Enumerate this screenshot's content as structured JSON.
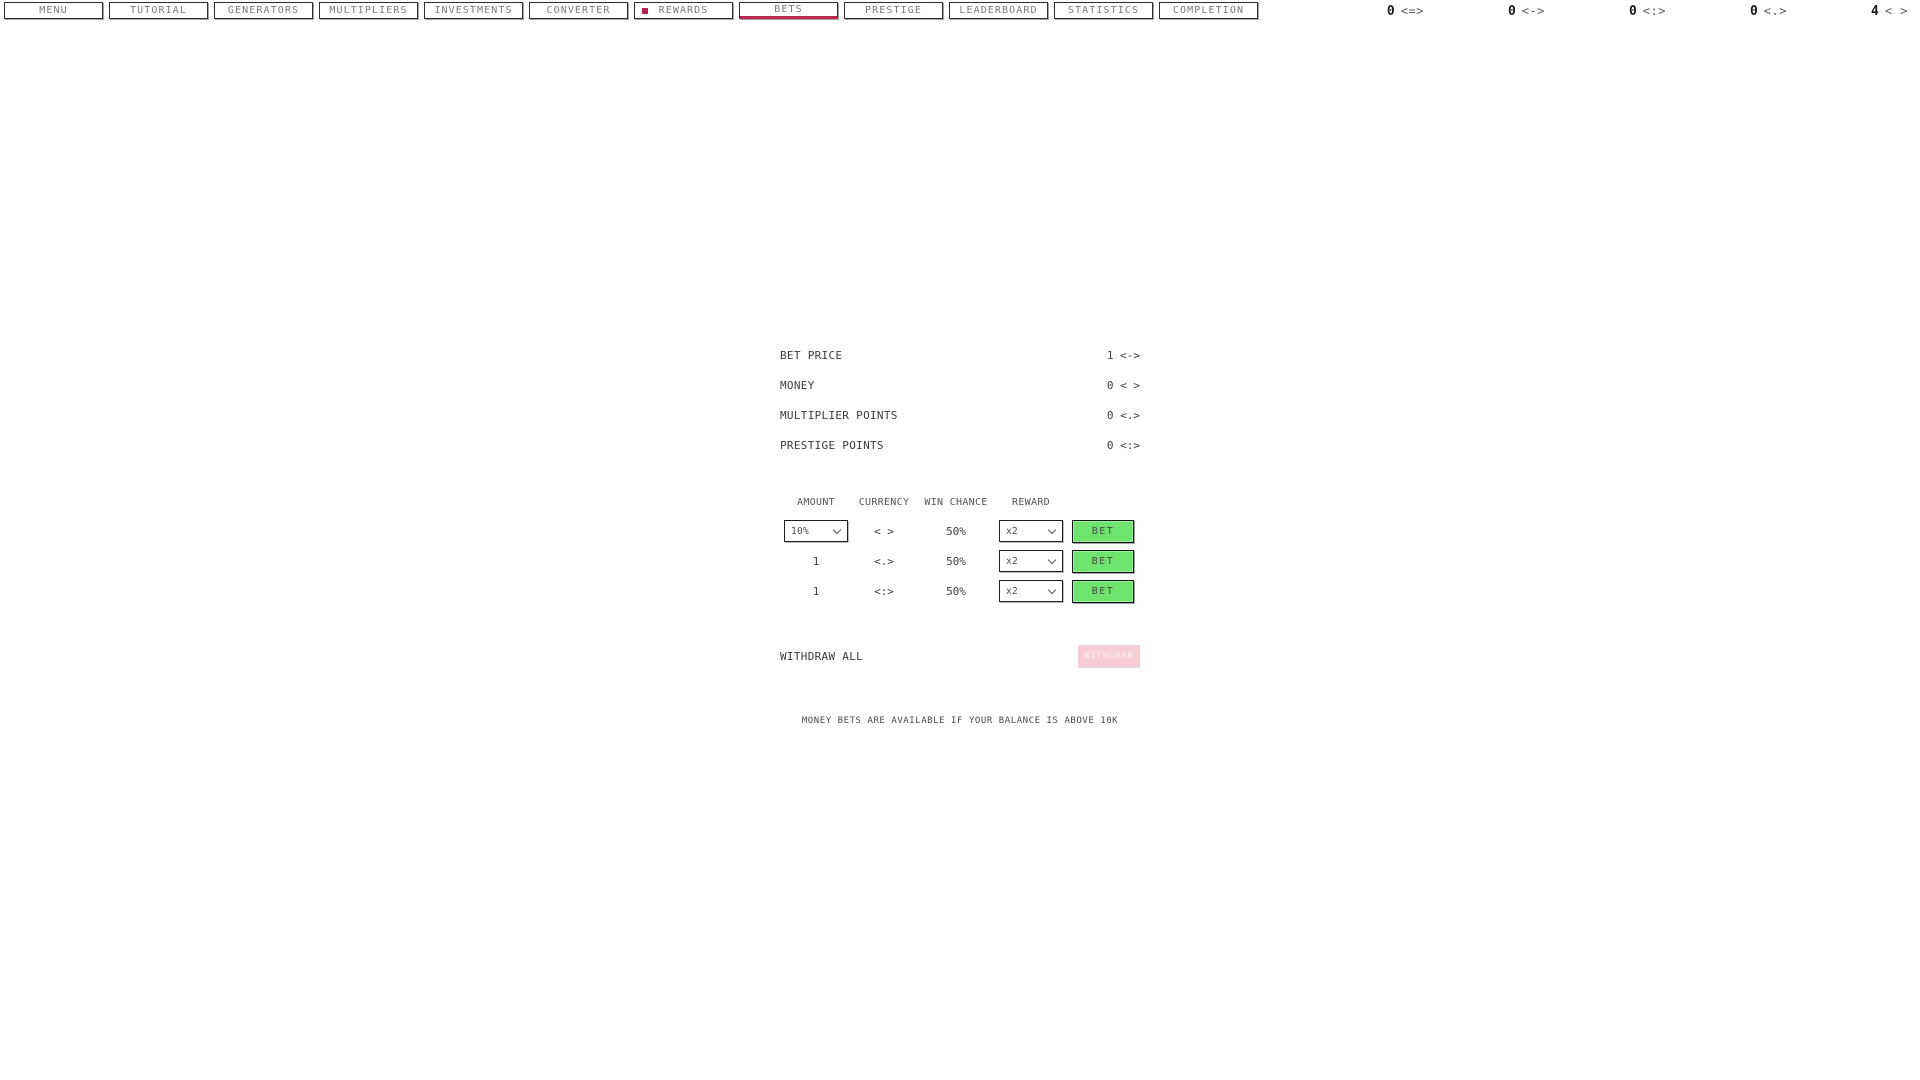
{
  "nav": {
    "items": [
      {
        "label": "MENU",
        "active": false,
        "notification": false
      },
      {
        "label": "TUTORIAL",
        "active": false,
        "notification": false
      },
      {
        "label": "GENERATORS",
        "active": false,
        "notification": false
      },
      {
        "label": "MULTIPLIERS",
        "active": false,
        "notification": false
      },
      {
        "label": "INVESTMENTS",
        "active": false,
        "notification": false
      },
      {
        "label": "CONVERTER",
        "active": false,
        "notification": false
      },
      {
        "label": "REWARDS",
        "active": false,
        "notification": true
      },
      {
        "label": "BETS",
        "active": true,
        "notification": false
      },
      {
        "label": "PRESTIGE",
        "active": false,
        "notification": false
      },
      {
        "label": "LEADERBOARD",
        "active": false,
        "notification": false
      },
      {
        "label": "STATISTICS",
        "active": false,
        "notification": false
      },
      {
        "label": "COMPLETION",
        "active": false,
        "notification": false
      }
    ],
    "counters": [
      {
        "value": "0",
        "symbol": "<=>"
      },
      {
        "value": "0",
        "symbol": "<->"
      },
      {
        "value": "0",
        "symbol": "<:>"
      },
      {
        "value": "0",
        "symbol": "<.>"
      },
      {
        "value": "4",
        "symbol": "< >"
      }
    ]
  },
  "stats": {
    "rows": [
      {
        "label": "BET PRICE",
        "value": "1 <->"
      },
      {
        "label": "MONEY",
        "value": "0 < >"
      },
      {
        "label": "MULTIPLIER POINTS",
        "value": "0 <.>"
      },
      {
        "label": "PRESTIGE POINTS",
        "value": "0 <:>"
      }
    ]
  },
  "bets_table": {
    "headers": {
      "amount": "AMOUNT",
      "currency": "CURRENCY",
      "win_chance": "WIN CHANCE",
      "reward": "REWARD"
    },
    "rows": [
      {
        "amount": "10%",
        "currency": "< >",
        "win_chance": "50%",
        "reward": "x2",
        "bet_label": "BET"
      },
      {
        "amount": "1",
        "currency": "<.>",
        "win_chance": "50%",
        "reward": "x2",
        "bet_label": "BET"
      },
      {
        "amount": "1",
        "currency": "<:>",
        "win_chance": "50%",
        "reward": "x2",
        "bet_label": "BET"
      }
    ]
  },
  "withdraw": {
    "label": "WITHDRAW ALL",
    "button_label": "WITHDRAW"
  },
  "footer_note": "MONEY BETS ARE AVAILABLE IF YOUR BALANCE IS ABOVE 10K",
  "colors": {
    "accent_red": "#b8274f",
    "bet_green": "#6ee46e",
    "disabled_pink": "#f8ccd4",
    "text_gray": "#3c3c3c"
  }
}
